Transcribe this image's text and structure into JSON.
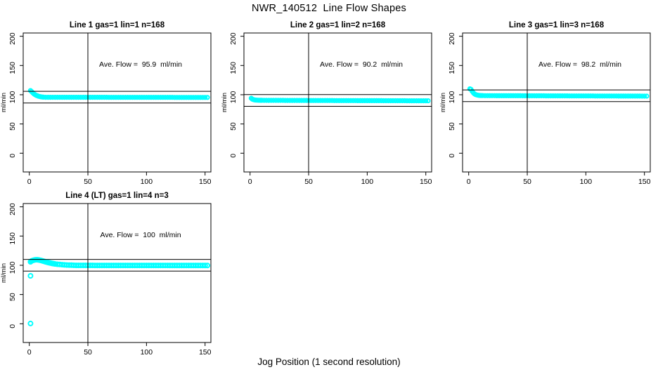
{
  "chart_data": {
    "type": "scatter",
    "title": "NWR_140512  Line Flow Shapes",
    "xlabel": "Jog Position (1 second resolution)",
    "ylabel": "ml/min",
    "x_ticks": [
      0,
      50,
      100,
      150
    ],
    "y_ticks": [
      0,
      50,
      100,
      150,
      200
    ],
    "xlim": [
      -5,
      155
    ],
    "ylim": [
      -32,
      206
    ],
    "grid": false,
    "legend": "none",
    "point_color": "#00ffff",
    "axis_color": "#000000",
    "ref_line_color": "#000000",
    "panels": [
      {
        "title": "Line 1 gas=1 lin=1 n=168",
        "annotation": "Ave. Flow =  95.9  ml/min",
        "ave_flow_ml_min": 95.9,
        "n": 168,
        "gas": 1,
        "lin": 1,
        "ref_lines": {
          "horizontal": [
            105.9,
            85.9
          ],
          "vertical": [
            50
          ]
        },
        "points_head": [
          [
            1,
            107
          ],
          [
            2,
            105.2
          ],
          [
            3,
            103.2
          ],
          [
            4,
            101.4
          ],
          [
            5,
            100
          ],
          [
            6,
            98.9
          ],
          [
            7,
            98
          ],
          [
            8,
            97.3
          ],
          [
            9,
            96.8
          ],
          [
            10,
            96.4
          ],
          [
            11,
            96.1
          ],
          [
            12,
            95.9
          ]
        ],
        "points_tail": {
          "from": 14,
          "to": 152,
          "step": 2,
          "start": 95.7,
          "end": 95.4
        },
        "outliers": []
      },
      {
        "title": "Line 2 gas=1 lin=2 n=168",
        "annotation": "Ave. Flow =  90.2  ml/min",
        "ave_flow_ml_min": 90.2,
        "n": 168,
        "gas": 1,
        "lin": 2,
        "ref_lines": {
          "horizontal": [
            100.2,
            80.2
          ],
          "vertical": [
            50
          ]
        },
        "points_head": [
          [
            1,
            94
          ],
          [
            2,
            92.4
          ],
          [
            3,
            91.6
          ],
          [
            4,
            91.1
          ],
          [
            5,
            90.8
          ],
          [
            6,
            90.7
          ],
          [
            7,
            90.6
          ],
          [
            8,
            90.6
          ],
          [
            9,
            90.5
          ],
          [
            10,
            90.5
          ]
        ],
        "points_tail": {
          "from": 12,
          "to": 152,
          "step": 2,
          "start": 90.4,
          "end": 89.6
        },
        "outliers": []
      },
      {
        "title": "Line 3 gas=1 lin=3 n=168",
        "annotation": "Ave. Flow =  98.2  ml/min",
        "ave_flow_ml_min": 98.2,
        "n": 168,
        "gas": 1,
        "lin": 3,
        "ref_lines": {
          "horizontal": [
            108.2,
            88.2
          ],
          "vertical": [
            50
          ]
        },
        "points_head": [
          [
            1,
            110
          ],
          [
            2,
            109.2
          ],
          [
            3,
            105.8
          ],
          [
            4,
            103.2
          ],
          [
            5,
            101.4
          ],
          [
            6,
            100.2
          ],
          [
            7,
            99.6
          ],
          [
            8,
            99.1
          ],
          [
            9,
            98.8
          ],
          [
            10,
            98.6
          ],
          [
            11,
            98.5
          ],
          [
            12,
            98.5
          ]
        ],
        "points_tail": {
          "from": 14,
          "to": 152,
          "step": 2,
          "start": 98.4,
          "end": 97.6
        },
        "outliers": []
      },
      {
        "title": "Line 4 (LT) gas=1 lin=4 n=3",
        "annotation": "Ave. Flow =  100  ml/min",
        "ave_flow_ml_min": 100,
        "n": 3,
        "gas": 1,
        "lin": 4,
        "ref_lines": {
          "horizontal": [
            110,
            90
          ],
          "vertical": [
            50
          ]
        },
        "points_head": [
          [
            1,
            106
          ],
          [
            2,
            107.4
          ],
          [
            3,
            108.3
          ],
          [
            4,
            108.9
          ],
          [
            5,
            109.3
          ],
          [
            6,
            109.5
          ],
          [
            7,
            109.4
          ],
          [
            8,
            109.1
          ],
          [
            9,
            108.7
          ],
          [
            10,
            108.2
          ],
          [
            11,
            107.7
          ],
          [
            12,
            107.1
          ],
          [
            13,
            106.5
          ],
          [
            14,
            105.9
          ],
          [
            15,
            105.4
          ],
          [
            16,
            104.8
          ],
          [
            17,
            104.3
          ],
          [
            18,
            103.8
          ],
          [
            19,
            103.4
          ],
          [
            20,
            103
          ],
          [
            21,
            102.6
          ],
          [
            22,
            102.3
          ],
          [
            24,
            101.8
          ],
          [
            26,
            101.4
          ],
          [
            28,
            101
          ],
          [
            30,
            100.7
          ],
          [
            32,
            100.5
          ],
          [
            34,
            100.3
          ],
          [
            36,
            100.2
          ],
          [
            38,
            100
          ],
          [
            40,
            99.9
          ],
          [
            42,
            99.9
          ],
          [
            44,
            99.8
          ]
        ],
        "points_tail": {
          "from": 46,
          "to": 152,
          "step": 2,
          "start": 99.8,
          "end": 99.6
        },
        "outliers": [
          [
            1,
            0.5
          ],
          [
            1,
            82
          ]
        ]
      }
    ]
  }
}
